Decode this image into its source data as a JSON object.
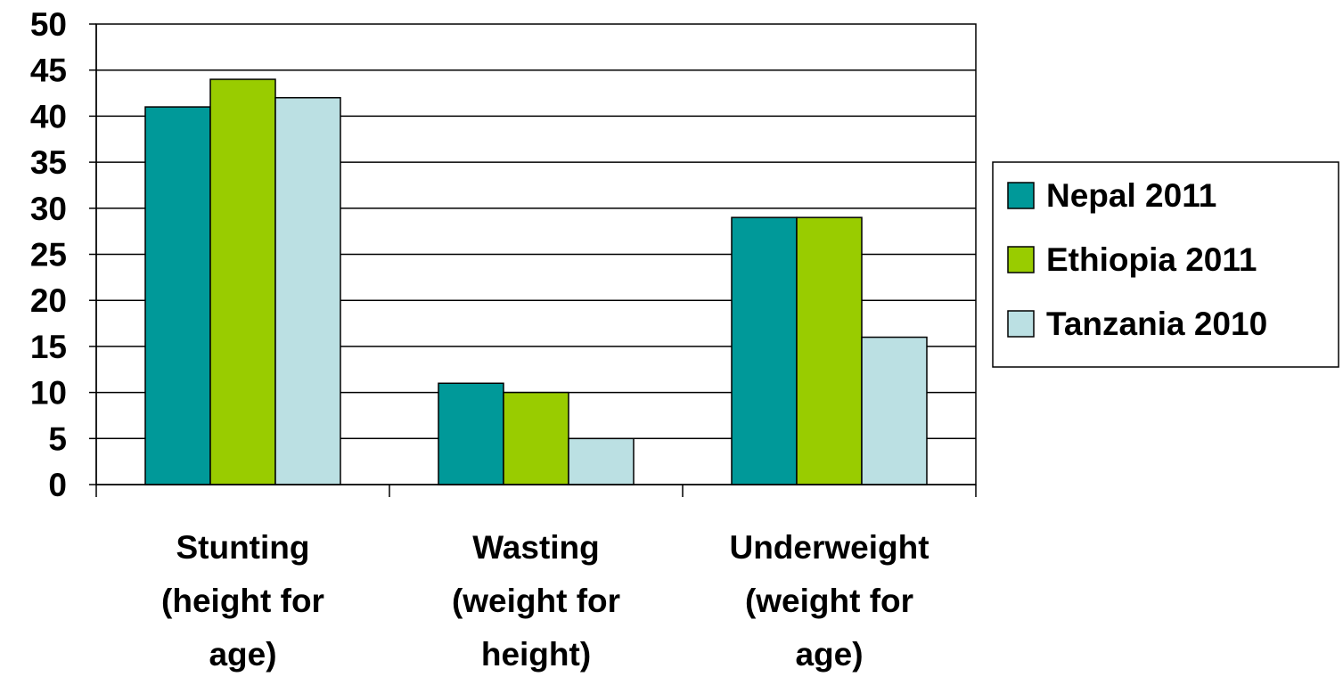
{
  "chart_data": {
    "type": "bar",
    "title": "",
    "xlabel": "",
    "ylabel": "",
    "ylim": [
      0,
      50
    ],
    "yticks": [
      0,
      5,
      10,
      15,
      20,
      25,
      30,
      35,
      40,
      45,
      50
    ],
    "grid": true,
    "legend_position": "right",
    "categories": [
      [
        "Stunting",
        "(height for",
        "age)"
      ],
      [
        "Wasting",
        "(weight for",
        "height)"
      ],
      [
        "Underweight",
        "(weight for",
        "age)"
      ]
    ],
    "series": [
      {
        "name": "Nepal 2011",
        "color": "#009999",
        "values": [
          41,
          11,
          29
        ]
      },
      {
        "name": "Ethiopia 2011",
        "color": "#99CC00",
        "values": [
          44,
          10,
          29
        ]
      },
      {
        "name": "Tanzania 2010",
        "color": "#BBE0E3",
        "values": [
          42,
          5,
          16
        ]
      }
    ]
  }
}
